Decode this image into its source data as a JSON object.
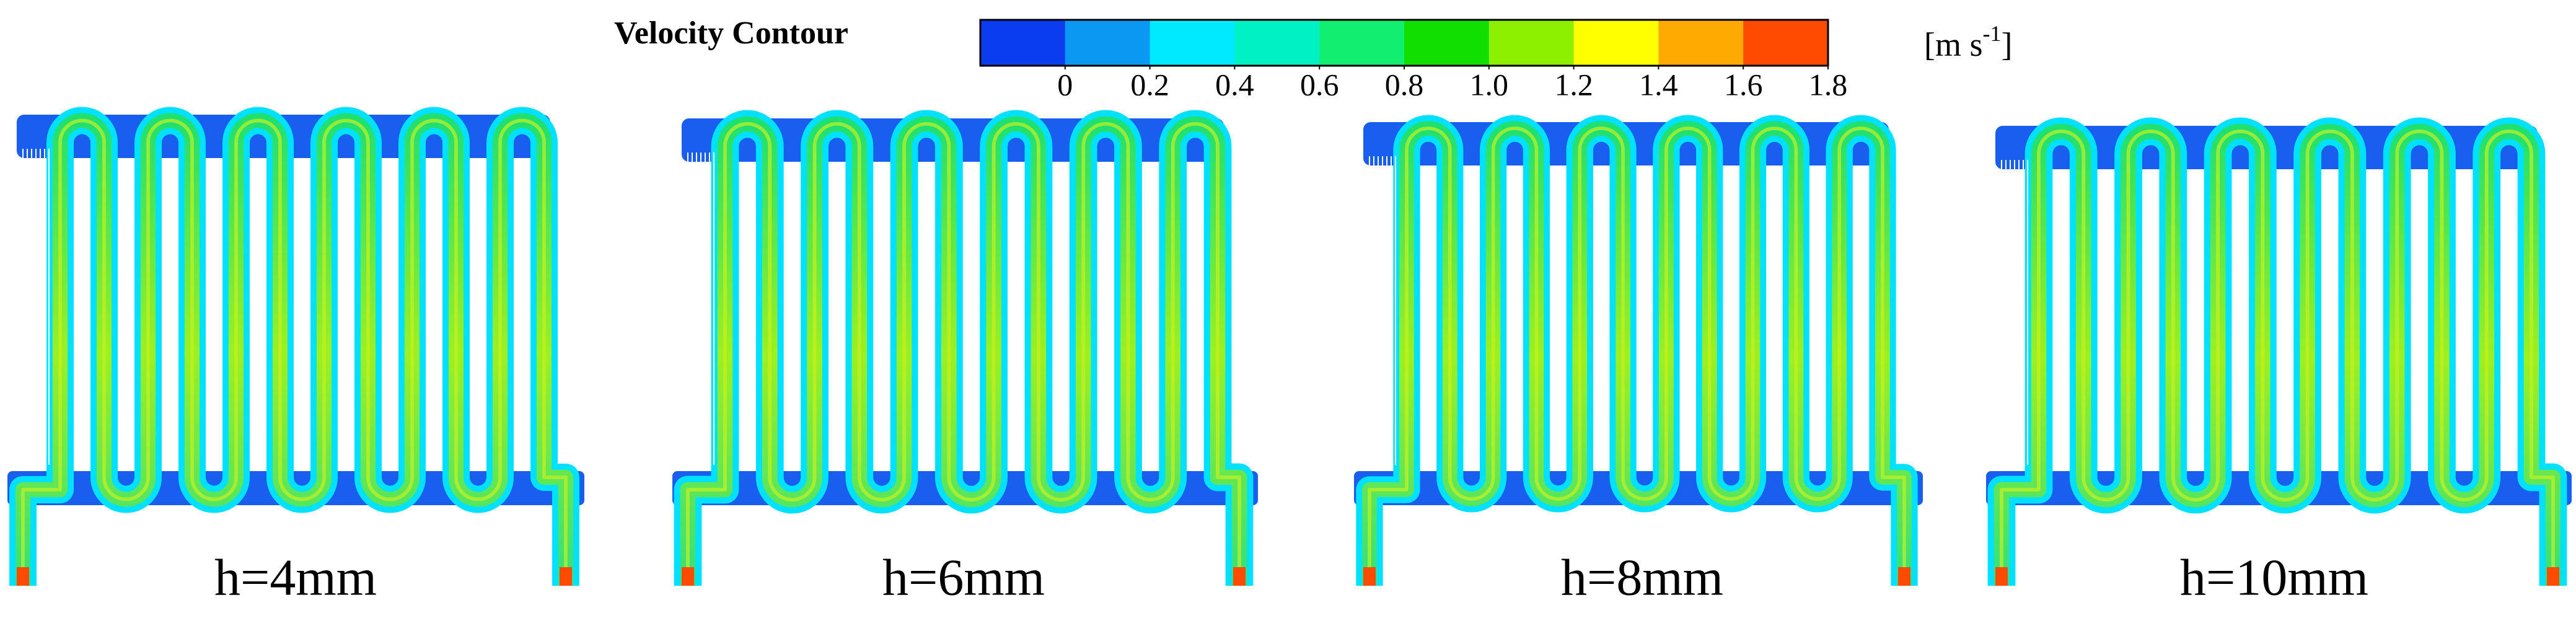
{
  "title": "Velocity Contour",
  "colorbar": {
    "colors": [
      "#0b3df0",
      "#0a98f2",
      "#00eaff",
      "#00f2c4",
      "#12ee70",
      "#10e000",
      "#8cf000",
      "#ffff00",
      "#ffaa00",
      "#ff4a00"
    ],
    "lim": [
      -0.2,
      1.8
    ],
    "ticks": [
      0,
      0.2,
      0.4,
      0.6,
      0.8,
      {
        "value": 1,
        "label": "1.0"
      },
      1.2,
      1.4,
      1.6,
      1.8
    ],
    "unit": {
      "prefix": "[m s",
      "superscript": "-1",
      "suffix": "]"
    }
  },
  "panels": [
    {
      "label": "h=4mm"
    },
    {
      "label": "h=6mm"
    },
    {
      "label": "h=8mm"
    },
    {
      "label": "h=10mm"
    }
  ]
}
